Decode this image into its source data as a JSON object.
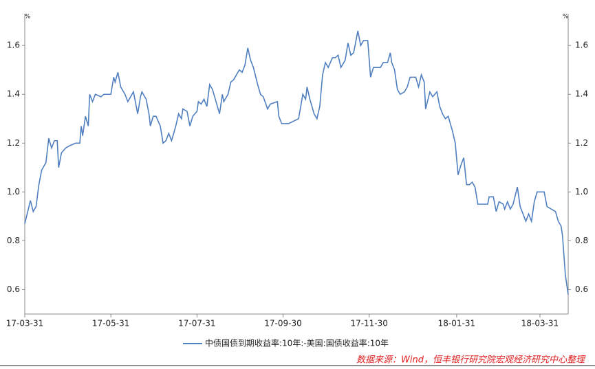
{
  "chart_data": {
    "type": "line",
    "yunit": "%",
    "xlim": [
      "17-03-31",
      "18-04-20"
    ],
    "xticks": [
      "17-03-31",
      "17-05-31",
      "17-07-31",
      "17-09-30",
      "17-11-30",
      "18-01-31",
      "18-03-31"
    ],
    "ylim": [
      0.5,
      1.73
    ],
    "yticks": [
      0.6,
      0.8,
      {
        "value": 1,
        "label": "1.0"
      },
      1.2,
      1.4,
      1.6
    ],
    "legend": "bottom",
    "source": "数据来源：Wind，恒丰银行研究院宏观经济研究中心整理",
    "x": [
      "17-03-31",
      "17-04-04",
      "17-04-06",
      "17-04-08",
      "17-04-10",
      "17-04-12",
      "17-04-15",
      "17-04-17",
      "17-04-19",
      "17-04-21",
      "17-04-23",
      "17-04-24",
      "17-04-26",
      "17-04-29",
      "17-05-02",
      "17-05-06",
      "17-05-09",
      "17-05-10",
      "17-05-11",
      "17-05-13",
      "17-05-15",
      "17-05-16",
      "17-05-18",
      "17-05-20",
      "17-05-24",
      "17-05-26",
      "17-05-31",
      "17-06-02",
      "17-06-03",
      "17-06-05",
      "17-06-07",
      "17-06-10",
      "17-06-12",
      "17-06-14",
      "17-06-16",
      "17-06-19",
      "17-06-21",
      "17-06-22",
      "17-06-25",
      "17-06-27",
      "17-06-28",
      "17-06-30",
      "17-07-02",
      "17-07-05",
      "17-07-07",
      "17-07-09",
      "17-07-11",
      "17-07-13",
      "17-07-16",
      "17-07-18",
      "17-07-20",
      "17-07-21",
      "17-07-24",
      "17-07-26",
      "17-07-28",
      "17-07-31",
      "17-08-01",
      "17-08-03",
      "17-08-05",
      "17-08-07",
      "17-08-09",
      "17-08-11",
      "17-08-14",
      "17-08-16",
      "17-08-18",
      "17-08-19",
      "17-08-22",
      "17-08-24",
      "17-08-26",
      "17-08-28",
      "17-08-30",
      "17-09-01",
      "17-09-03",
      "17-09-05",
      "17-09-07",
      "17-09-09",
      "17-09-12",
      "17-09-14",
      "17-09-16",
      "17-09-19",
      "17-09-21",
      "17-09-26",
      "17-09-27",
      "17-09-29",
      "17-10-04",
      "17-10-11",
      "17-10-14",
      "17-10-16",
      "17-10-17",
      "17-10-19",
      "17-10-22",
      "17-10-24",
      "17-10-26",
      "17-10-28",
      "17-10-30",
      "17-11-01",
      "17-11-04",
      "17-11-06",
      "17-11-08",
      "17-11-10",
      "17-11-13",
      "17-11-15",
      "17-11-17",
      "17-11-19",
      "17-11-22",
      "17-11-24",
      "17-11-26",
      "17-11-29",
      "17-12-01",
      "17-12-03",
      "17-12-08",
      "17-12-10",
      "17-12-13",
      "17-12-15",
      "17-12-16",
      "17-12-18",
      "17-12-20",
      "17-12-22",
      "17-12-25",
      "17-12-27",
      "17-12-29",
      "18-01-02",
      "18-01-04",
      "18-01-06",
      "18-01-08",
      "18-01-09",
      "18-01-12",
      "18-01-14",
      "18-01-17",
      "18-01-19",
      "18-01-21",
      "18-01-23",
      "18-01-25",
      "18-01-26",
      "18-01-28",
      "18-01-30",
      "18-02-01",
      "18-02-03",
      "18-02-05",
      "18-02-07",
      "18-02-09",
      "18-02-11",
      "18-02-13",
      "18-02-15",
      "18-02-22",
      "18-02-23",
      "18-02-26",
      "18-02-28",
      "18-03-02",
      "18-03-05",
      "18-03-06",
      "18-03-08",
      "18-03-10",
      "18-03-12",
      "18-03-15",
      "18-03-17",
      "18-03-19",
      "18-03-21",
      "18-03-23",
      "18-03-25",
      "18-03-27",
      "18-03-29",
      "18-04-03",
      "18-04-05",
      "18-04-11",
      "18-04-13",
      "18-04-15",
      "18-04-16",
      "18-04-18",
      "18-04-20"
    ],
    "series": [
      {
        "name": "中债国债到期收益率:10年:-美国:国债收益率:10年",
        "color": "#4f7fc0",
        "values": [
          0.87,
          0.965,
          0.92,
          0.94,
          1.03,
          1.09,
          1.12,
          1.22,
          1.18,
          1.21,
          1.21,
          1.1,
          1.16,
          1.18,
          1.19,
          1.2,
          1.2,
          1.27,
          1.23,
          1.31,
          1.27,
          1.4,
          1.37,
          1.4,
          1.39,
          1.4,
          1.4,
          1.47,
          1.45,
          1.49,
          1.43,
          1.4,
          1.37,
          1.39,
          1.41,
          1.32,
          1.39,
          1.41,
          1.38,
          1.32,
          1.27,
          1.31,
          1.31,
          1.27,
          1.2,
          1.21,
          1.24,
          1.21,
          1.27,
          1.32,
          1.3,
          1.34,
          1.33,
          1.27,
          1.31,
          1.33,
          1.37,
          1.36,
          1.38,
          1.35,
          1.44,
          1.42,
          1.36,
          1.32,
          1.4,
          1.37,
          1.4,
          1.45,
          1.46,
          1.48,
          1.5,
          1.49,
          1.52,
          1.59,
          1.54,
          1.51,
          1.44,
          1.4,
          1.39,
          1.34,
          1.36,
          1.37,
          1.31,
          1.28,
          1.28,
          1.3,
          1.4,
          1.38,
          1.43,
          1.38,
          1.32,
          1.3,
          1.35,
          1.48,
          1.53,
          1.51,
          1.55,
          1.55,
          1.56,
          1.51,
          1.54,
          1.61,
          1.56,
          1.57,
          1.66,
          1.6,
          1.62,
          1.62,
          1.47,
          1.51,
          1.51,
          1.53,
          1.53,
          1.57,
          1.53,
          1.5,
          1.42,
          1.4,
          1.41,
          1.43,
          1.47,
          1.47,
          1.43,
          1.48,
          1.45,
          1.34,
          1.41,
          1.39,
          1.41,
          1.35,
          1.32,
          1.3,
          1.31,
          1.29,
          1.25,
          1.2,
          1.07,
          1.11,
          1.14,
          1.03,
          1.03,
          1.04,
          1.02,
          0.95,
          0.95,
          0.98,
          0.98,
          0.92,
          0.96,
          0.95,
          0.93,
          0.96,
          0.93,
          0.95,
          1.02,
          0.94,
          0.91,
          0.88,
          0.91,
          0.88,
          0.96,
          1.0,
          1.0,
          0.94,
          0.92,
          0.88,
          0.86,
          0.82,
          0.66,
          0.58
        ]
      }
    ]
  }
}
